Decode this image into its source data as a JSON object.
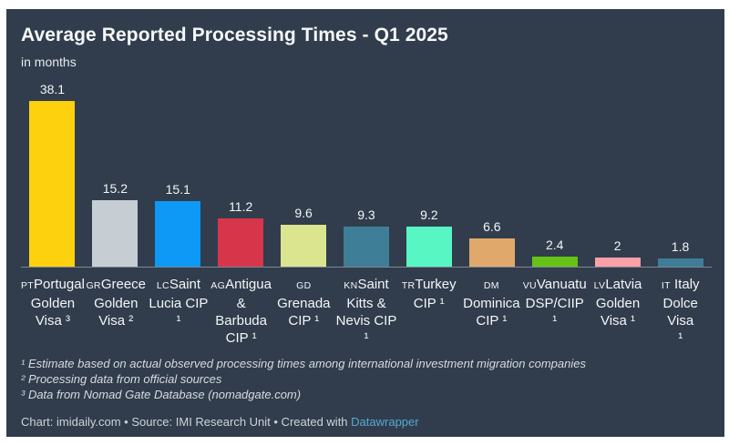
{
  "chart_data": {
    "type": "bar",
    "title": "Average Reported Processing Times - Q1 2025",
    "subtitle": "in months",
    "xlabel": "",
    "ylabel": "months",
    "ylim": [
      0,
      40
    ],
    "grid": false,
    "legend": false,
    "value_labels": "above bars",
    "categories": [
      "Portugal Golden Visa ³",
      "Greece Golden Visa ²",
      "Saint Lucia CIP ¹",
      "Antigua & Barbuda CIP ¹",
      "Grenada CIP ¹",
      "Saint Kitts & Nevis CIP ¹",
      "Turkey CIP ¹",
      "Dominica CIP ¹",
      "Vanuatu DSP/CIIP ¹",
      "Latvia Golden Visa ¹",
      "Italy Dolce Visa ¹"
    ],
    "values": [
      38.1,
      15.2,
      15.1,
      11.2,
      9.6,
      9.3,
      9.2,
      6.6,
      2.4,
      2,
      1.8
    ],
    "bars": [
      {
        "code": "PT",
        "label_lines": [
          "Portugal",
          "Golden",
          "Visa ³"
        ],
        "value": 38.1,
        "color": "#fdd10e"
      },
      {
        "code": "GR",
        "label_lines": [
          "Greece",
          "Golden",
          "Visa ²"
        ],
        "value": 15.2,
        "color": "#c6ced3"
      },
      {
        "code": "LC",
        "label_lines": [
          "Saint",
          "Lucia CIP ¹"
        ],
        "value": 15.1,
        "color": "#0d99f5"
      },
      {
        "code": "AG",
        "label_lines": [
          "Antigua",
          "& Barbuda",
          "CIP ¹"
        ],
        "value": 11.2,
        "color": "#d7354a"
      },
      {
        "code": "GD",
        "label_lines": [
          "",
          "Grenada",
          "CIP ¹"
        ],
        "value": 9.6,
        "color": "#dbe48f"
      },
      {
        "code": "KN",
        "label_lines": [
          "Saint",
          "Kitts &",
          "Nevis CIP",
          "¹"
        ],
        "value": 9.3,
        "color": "#3f7e97"
      },
      {
        "code": "TR",
        "label_lines": [
          "Turkey",
          "CIP ¹"
        ],
        "value": 9.2,
        "color": "#57f6c3"
      },
      {
        "code": "DM",
        "label_lines": [
          "",
          "Dominica",
          "CIP ¹"
        ],
        "value": 6.6,
        "color": "#e0a96b"
      },
      {
        "code": "VU",
        "label_lines": [
          "Vanuatu",
          "DSP/CIIP ¹"
        ],
        "value": 2.4,
        "color": "#67c217"
      },
      {
        "code": "LV",
        "label_lines": [
          "Latvia",
          "Golden",
          "Visa ¹"
        ],
        "value": 2,
        "color": "#fb9fa9"
      },
      {
        "code": "IT",
        "label_lines": [
          " Italy",
          "Dolce Visa",
          "¹"
        ],
        "value": 1.8,
        "color": "#3e7d98"
      }
    ]
  },
  "footnotes": {
    "lines": [
      "¹ Estimate based on actual observed processing times among international investment migration companies",
      "² Processing data from official sources",
      "³ Data from Nomad Gate Database (nomadgate.com)"
    ]
  },
  "attribution": {
    "text": "Chart: imidaily.com • Source: IMI Research Unit • Created with ",
    "link_label": "Datawrapper"
  },
  "colors": {
    "card_bg": "#313d4d",
    "page_bg": "#ffffff",
    "axis_line": "#7e8894",
    "text": "#f4f6f7",
    "link": "#55a9ce"
  }
}
